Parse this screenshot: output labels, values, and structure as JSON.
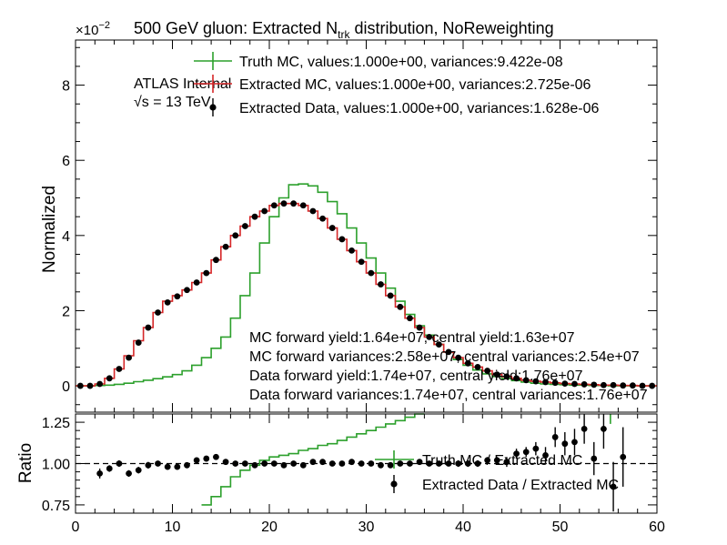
{
  "chart_data": [
    {
      "type": "line",
      "title_main": "500 GeV gluon: Extracted N",
      "title_sub": "trk",
      "title_rest": " distribution, NoReweighting",
      "ylabel": "Normalized",
      "exponent_base": "×10",
      "exponent_power": "−2",
      "ylim": [
        -0.007,
        0.092
      ],
      "xlim": [
        0,
        60
      ],
      "y_ticks": [
        0,
        2,
        4,
        6,
        8
      ],
      "atlas_label": "ATLAS Internal",
      "sqrt_label": "√s =  13 TeV",
      "legend": [
        {
          "label": "Truth MC, values:1.000e+00, variances:9.422e-08",
          "color": "#2ca02c",
          "style": "step"
        },
        {
          "label": "Extracted MC, values:1.000e+00, variances:2.725e-06",
          "color": "#d62728",
          "style": "step"
        },
        {
          "label": "Extracted Data, values:1.000e+00, variances:1.628e-06",
          "color": "#000000",
          "style": "points"
        }
      ],
      "annotations": [
        "MC forward yield:1.64e+07, central yield:1.63e+07",
        "MC forward variances:2.58e+07, central variances:2.54e+07",
        "Data forward yield:1.74e+07, central yield:1.76e+07",
        "Data forward variances:1.74e+07, central variances:1.76e+07"
      ],
      "bin_edges": [
        0,
        1,
        2,
        3,
        4,
        5,
        6,
        7,
        8,
        9,
        10,
        11,
        12,
        13,
        14,
        15,
        16,
        17,
        18,
        19,
        20,
        21,
        22,
        23,
        24,
        25,
        26,
        27,
        28,
        29,
        30,
        31,
        32,
        33,
        34,
        35,
        36,
        37,
        38,
        39,
        40,
        41,
        42,
        43,
        44,
        45,
        46,
        47,
        48,
        49,
        50,
        51,
        52,
        53,
        54,
        55,
        56,
        57,
        58,
        59,
        60
      ],
      "series": [
        {
          "name": "Truth MC",
          "color": "#2ca02c",
          "values": [
            0.0,
            0.0,
            0.0001,
            0.0002,
            0.0004,
            0.0007,
            0.0011,
            0.0015,
            0.0019,
            0.0024,
            0.003,
            0.004,
            0.0055,
            0.0075,
            0.01,
            0.013,
            0.018,
            0.024,
            0.03,
            0.038,
            0.045,
            0.05,
            0.0535,
            0.0537,
            0.0532,
            0.0515,
            0.049,
            0.0458,
            0.042,
            0.038,
            0.034,
            0.03,
            0.026,
            0.0225,
            0.019,
            0.016,
            0.0135,
            0.011,
            0.009,
            0.007,
            0.0055,
            0.0042,
            0.0032,
            0.0025,
            0.0019,
            0.0014,
            0.001,
            0.0007,
            0.0005,
            0.0004,
            0.0003,
            0.0002,
            0.0002,
            0.0001,
            0.0001,
            0.0,
            0.0,
            0.0,
            0.0,
            0.0
          ]
        },
        {
          "name": "Extracted MC",
          "color": "#d62728",
          "values": [
            0.0,
            0.0,
            0.0005,
            0.002,
            0.0045,
            0.008,
            0.012,
            0.0155,
            0.0195,
            0.0225,
            0.024,
            0.0255,
            0.0275,
            0.03,
            0.0335,
            0.037,
            0.04,
            0.0425,
            0.045,
            0.0465,
            0.048,
            0.0485,
            0.0485,
            0.048,
            0.0465,
            0.0445,
            0.042,
            0.039,
            0.036,
            0.033,
            0.03,
            0.027,
            0.024,
            0.021,
            0.018,
            0.0155,
            0.013,
            0.011,
            0.009,
            0.0075,
            0.006,
            0.005,
            0.004,
            0.003,
            0.0025,
            0.002,
            0.0015,
            0.0012,
            0.001,
            0.0008,
            0.0006,
            0.0005,
            0.0004,
            0.0003,
            0.0002,
            0.0002,
            0.0001,
            0.0001,
            0.0,
            0.0
          ]
        },
        {
          "name": "Extracted Data",
          "color": "#000000",
          "values": [
            0.0,
            0.0,
            0.0005,
            0.002,
            0.0045,
            0.0075,
            0.0115,
            0.0155,
            0.0195,
            0.0222,
            0.0238,
            0.0255,
            0.0275,
            0.03,
            0.0335,
            0.037,
            0.04,
            0.0425,
            0.045,
            0.0465,
            0.048,
            0.0485,
            0.0485,
            0.048,
            0.0465,
            0.0445,
            0.042,
            0.039,
            0.036,
            0.033,
            0.03,
            0.027,
            0.024,
            0.021,
            0.018,
            0.0155,
            0.013,
            0.011,
            0.009,
            0.0075,
            0.006,
            0.005,
            0.004,
            0.003,
            0.0025,
            0.002,
            0.0015,
            0.0012,
            0.001,
            0.0008,
            0.0006,
            0.0005,
            0.0004,
            0.0003,
            0.0002,
            0.0002,
            0.0001,
            0.0001,
            0.0,
            0.0
          ]
        }
      ]
    },
    {
      "type": "scatter",
      "ylabel": "Ratio",
      "xlim": [
        0,
        60
      ],
      "ylim": [
        0.7,
        1.3
      ],
      "x_ticks": [
        0,
        10,
        20,
        30,
        40,
        50,
        60
      ],
      "y_ticks": [
        "0.75",
        "1.00",
        "1.25"
      ],
      "reference_line": 1.0,
      "legend": [
        {
          "label": "Truth MC / Extracted MC",
          "color": "#2ca02c",
          "style": "step"
        },
        {
          "label": "Extracted Data / Extracted MC",
          "color": "#000000",
          "style": "points"
        }
      ],
      "series": [
        {
          "name": "Truth MC / Extracted MC",
          "color": "#2ca02c",
          "x_edges": [
            13,
            14,
            15,
            16,
            17,
            18,
            19,
            20,
            21,
            22,
            23,
            24,
            25,
            26,
            27,
            28,
            29,
            30,
            31,
            32,
            33,
            34,
            35
          ],
          "values": [
            0.75,
            0.8,
            0.86,
            0.92,
            0.96,
            0.99,
            1.02,
            1.04,
            1.05,
            1.06,
            1.08,
            1.09,
            1.11,
            1.12,
            1.14,
            1.16,
            1.18,
            1.2,
            1.22,
            1.24,
            1.26,
            1.28,
            1.31
          ]
        },
        {
          "name": "Extracted Data / Extracted MC",
          "color": "#000000",
          "x": [
            2.5,
            3.5,
            4.5,
            5.5,
            6.5,
            7.5,
            8.5,
            9.5,
            10.5,
            11.5,
            12.5,
            13.5,
            14.5,
            15.5,
            16.5,
            17.5,
            18.5,
            19.5,
            20.5,
            21.5,
            22.5,
            23.5,
            24.5,
            25.5,
            26.5,
            27.5,
            28.5,
            29.5,
            30.5,
            31.5,
            32.5,
            33.5,
            34.5,
            35.5,
            36.5,
            37.5,
            38.5,
            39.5,
            40.5,
            41.5,
            42.5,
            43.5,
            44.5,
            45.5,
            46.5,
            47.5,
            48.5,
            49.5,
            50.5,
            51.5,
            52.5,
            53.5,
            54.5,
            55.5,
            56.5
          ],
          "y": [
            0.94,
            0.97,
            1.0,
            0.94,
            0.96,
            0.99,
            1.0,
            0.98,
            0.98,
            0.99,
            1.02,
            1.03,
            1.04,
            1.01,
            1.0,
            1.0,
            0.99,
            1.0,
            1.0,
            0.99,
            1.0,
            0.99,
            1.01,
            1.01,
            1.0,
            1.0,
            1.01,
            1.0,
            1.0,
            0.99,
            0.99,
            1.0,
            1.0,
            1.01,
            1.0,
            1.0,
            1.0,
            1.0,
            1.0,
            1.0,
            1.02,
            1.02,
            1.01,
            1.06,
            1.07,
            1.09,
            1.05,
            1.16,
            1.12,
            1.13,
            1.21,
            1.03,
            1.21,
            0.86,
            1.04
          ],
          "errors": [
            0.03,
            0.02,
            0.02,
            0.02,
            0.02,
            0.02,
            0.015,
            0.015,
            0.015,
            0.015,
            0.015,
            0.01,
            0.01,
            0.01,
            0.01,
            0.01,
            0.01,
            0.01,
            0.01,
            0.01,
            0.01,
            0.01,
            0.01,
            0.01,
            0.01,
            0.01,
            0.01,
            0.01,
            0.01,
            0.01,
            0.01,
            0.01,
            0.01,
            0.01,
            0.01,
            0.01,
            0.01,
            0.02,
            0.02,
            0.02,
            0.02,
            0.02,
            0.03,
            0.03,
            0.03,
            0.04,
            0.05,
            0.06,
            0.07,
            0.08,
            0.09,
            0.1,
            0.12,
            0.15,
            0.18
          ]
        }
      ]
    }
  ]
}
